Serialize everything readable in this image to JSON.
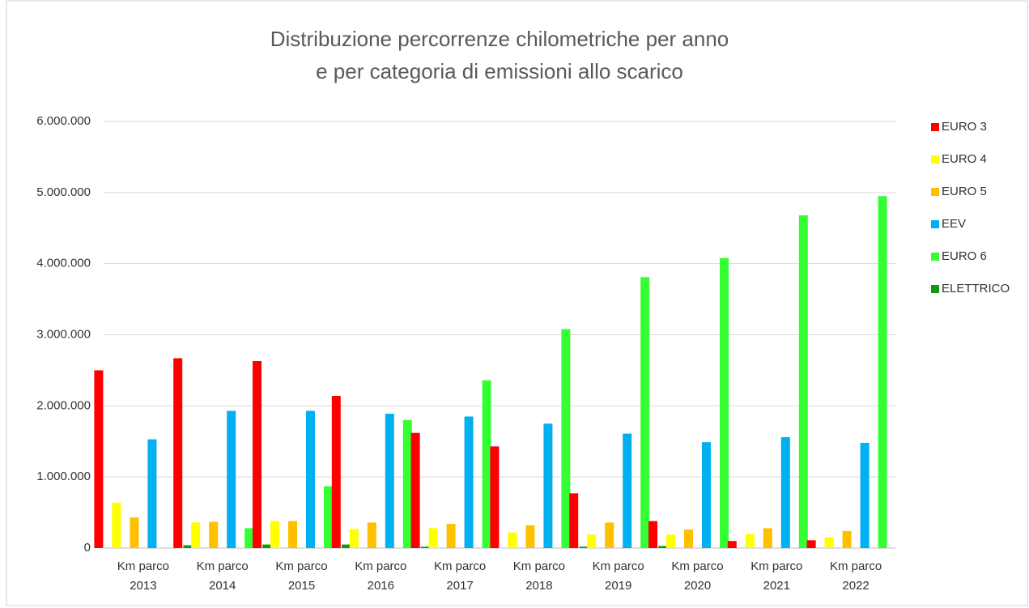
{
  "chart_data": {
    "type": "bar",
    "title": [
      "Distribuzione percorrenze chilometriche per anno",
      "e per categoria di emissioni allo scarico"
    ],
    "categories": [
      "Km parco 2013",
      "Km parco 2014",
      "Km parco 2015",
      "Km parco 2016",
      "Km parco 2017",
      "Km parco 2018",
      "Km parco 2019",
      "Km parco 2020",
      "Km parco 2021",
      "Km parco 2022"
    ],
    "series": [
      {
        "name": "EURO 3",
        "color": "#ff0000",
        "values": [
          2500000,
          2670000,
          2630000,
          2140000,
          1620000,
          1430000,
          770000,
          380000,
          100000,
          110000
        ]
      },
      {
        "name": "EURO 4",
        "color": "#ffff00",
        "values": [
          640000,
          360000,
          380000,
          270000,
          280000,
          220000,
          190000,
          190000,
          200000,
          150000
        ]
      },
      {
        "name": "EURO 5",
        "color": "#ffc000",
        "values": [
          430000,
          370000,
          380000,
          360000,
          340000,
          320000,
          360000,
          260000,
          280000,
          240000
        ]
      },
      {
        "name": "EEV",
        "color": "#00b0f0",
        "values": [
          1530000,
          1930000,
          1930000,
          1890000,
          1850000,
          1750000,
          1610000,
          1490000,
          1560000,
          1480000
        ]
      },
      {
        "name": "EURO 6",
        "color": "#33ff33",
        "values": [
          0,
          280000,
          870000,
          1800000,
          2360000,
          3080000,
          3810000,
          4080000,
          4680000,
          4950000
        ]
      },
      {
        "name": "ELETTRICO",
        "color": "#119911",
        "values": [
          40000,
          50000,
          50000,
          20000,
          0,
          20000,
          30000,
          0,
          0,
          0
        ]
      }
    ],
    "ylim": [
      0,
      6000000
    ],
    "yticks": [
      0,
      {
        "value": 1000000,
        "label": "1.000.000"
      },
      {
        "value": 2000000,
        "label": "2.000.000"
      },
      {
        "value": 3000000,
        "label": "3.000.000"
      },
      {
        "value": 4000000,
        "label": "4.000.000"
      },
      {
        "value": 5000000,
        "label": "5.000.000"
      },
      {
        "value": 6000000,
        "label": "6.000.000"
      }
    ],
    "grid": true,
    "legend": "right"
  }
}
